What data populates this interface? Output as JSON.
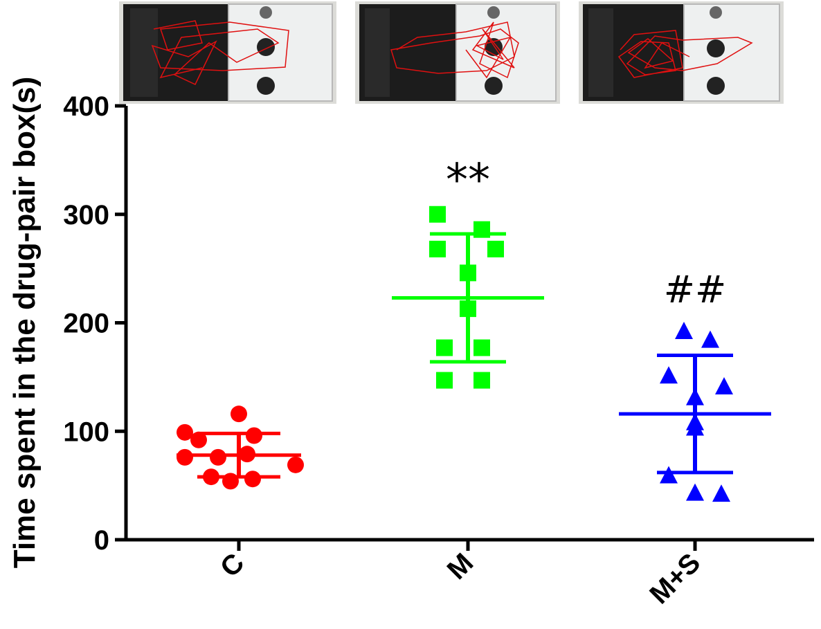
{
  "chart_data": {
    "type": "scatter",
    "title": "",
    "xlabel": "",
    "ylabel": "Time spent in the drug-pair box(s)",
    "ylim": [
      0,
      400
    ],
    "yticks": [
      0,
      100,
      200,
      300,
      400
    ],
    "categories": [
      "C",
      "M",
      "M+S"
    ],
    "grid": false,
    "legend": "none",
    "series": [
      {
        "category": "C",
        "color": "#ff0000",
        "marker": "circle",
        "points": [
          116,
          99,
          96,
          92,
          79,
          76,
          76,
          69,
          58,
          56,
          54
        ],
        "mean": 78,
        "sd_upper": 98,
        "sd_lower": 58,
        "annotation": ""
      },
      {
        "category": "M",
        "color": "#00ff00",
        "marker": "square",
        "points": [
          300,
          286,
          268,
          268,
          246,
          213,
          177,
          177,
          147,
          147
        ],
        "mean": 223,
        "sd_upper": 282,
        "sd_lower": 164,
        "annotation": "**"
      },
      {
        "category": "M+S",
        "color": "#0000ff",
        "marker": "triangle",
        "points": [
          192,
          184,
          151,
          141,
          131,
          108,
          103,
          59,
          43,
          42
        ],
        "mean": 116,
        "sd_upper": 170,
        "sd_lower": 62,
        "annotation": "##"
      }
    ],
    "insets": [
      {
        "panel": "photo-C",
        "description_icon": "cpp-box-trajectory-icon"
      },
      {
        "panel": "photo-M",
        "description_icon": "cpp-box-trajectory-icon"
      },
      {
        "panel": "photo-MS",
        "description_icon": "cpp-box-trajectory-icon"
      }
    ]
  }
}
